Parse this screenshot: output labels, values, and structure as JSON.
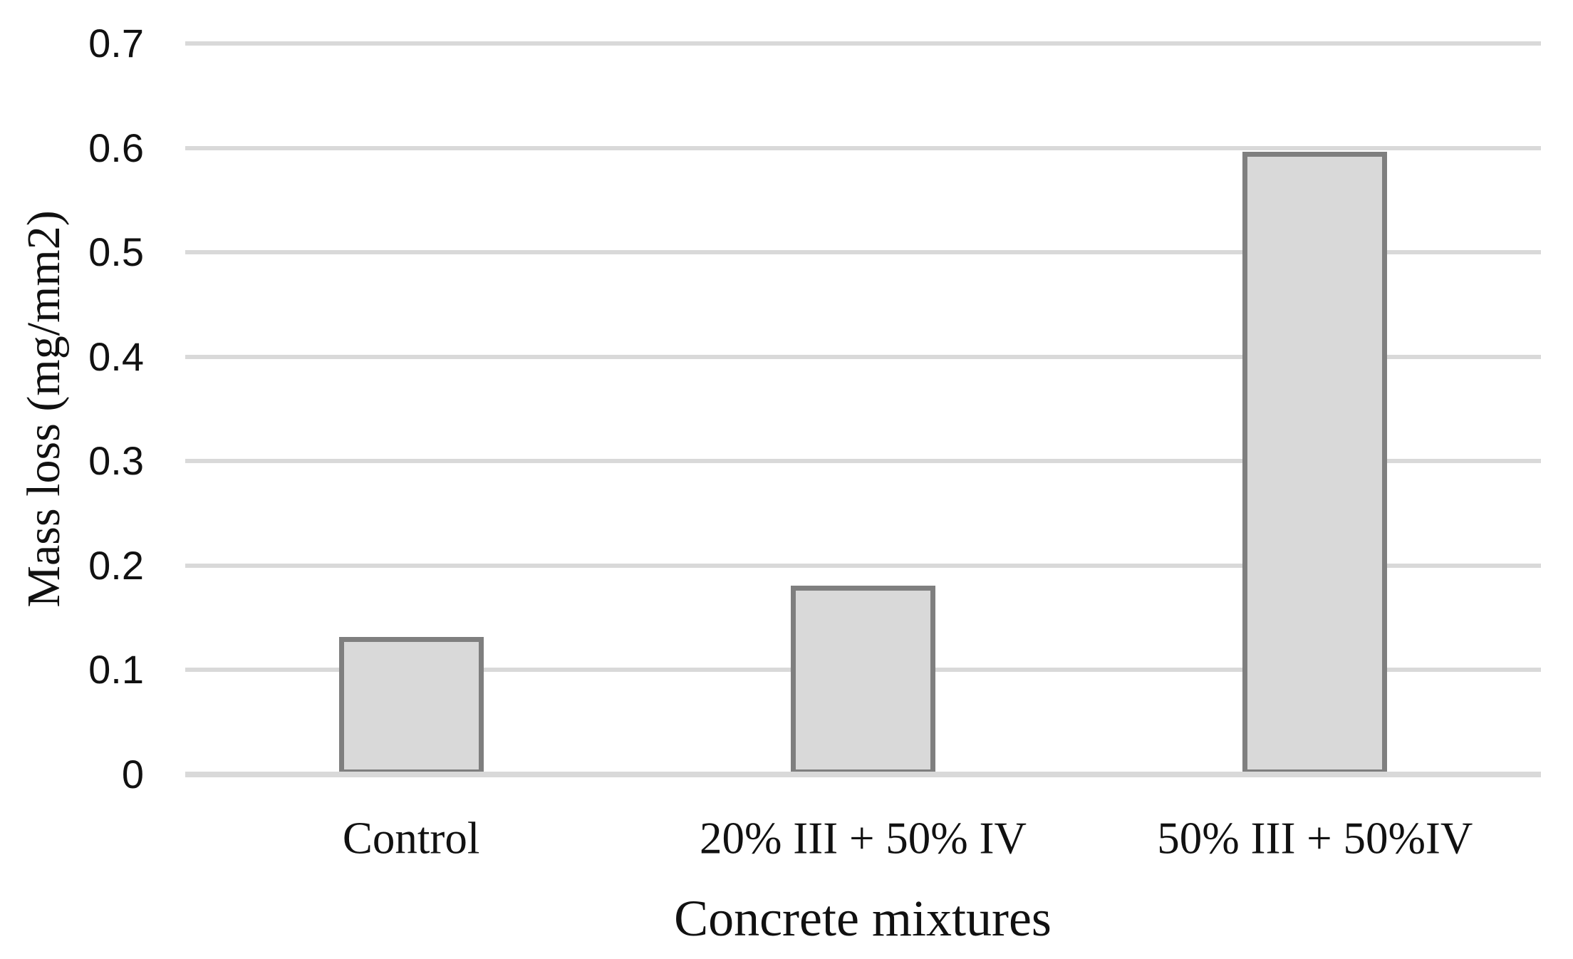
{
  "chart_data": {
    "type": "bar",
    "title": "",
    "xlabel": "Concrete mixtures",
    "ylabel": "Mass loss (mg/mm2)",
    "categories": [
      "Control",
      "20% III + 50% IV",
      "50% III + 50%IV"
    ],
    "values": [
      0.132,
      0.181,
      0.596
    ],
    "ylim": [
      0,
      0.7
    ],
    "y_ticks": [
      {
        "label": "0.7",
        "value": 0.7
      },
      {
        "label": "0.6",
        "value": 0.6
      },
      {
        "label": "0.5",
        "value": 0.5
      },
      {
        "label": "0.4",
        "value": 0.4
      },
      {
        "label": "0.3",
        "value": 0.3
      },
      {
        "label": "0.2",
        "value": 0.2
      },
      {
        "label": "0.1",
        "value": 0.1
      },
      {
        "label": "0",
        "value": 0
      }
    ],
    "grid": "horizontal",
    "legend": "none",
    "colors": {
      "bar_fill": "#d9d9d9",
      "bar_border": "#7f7f7f",
      "gridline": "#d9d9d9",
      "axis_line": "#d9d9d9",
      "text": "#111111"
    }
  }
}
